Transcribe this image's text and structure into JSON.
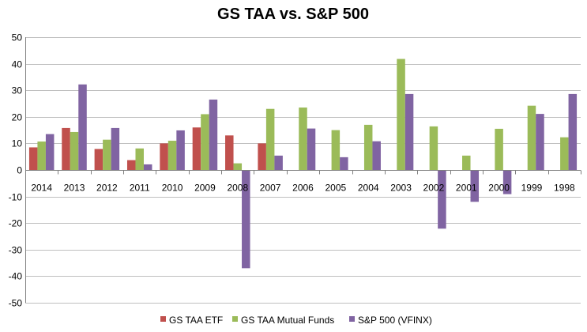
{
  "chart_data": {
    "type": "bar",
    "title": "GS TAA vs. S&P 500",
    "xlabel": "",
    "ylabel": "",
    "ylim": [
      -50,
      50
    ],
    "yticks": [
      -50,
      -40,
      -30,
      -20,
      -10,
      0,
      10,
      20,
      30,
      40,
      50
    ],
    "grid": true,
    "legend_position": "bottom",
    "categories": [
      "2014",
      "2013",
      "2012",
      "2011",
      "2010",
      "2009",
      "2008",
      "2007",
      "2006",
      "2005",
      "2004",
      "2003",
      "2002",
      "2001",
      "2000",
      "1999",
      "1998"
    ],
    "series": [
      {
        "name": "GS TAA ETF",
        "color": "#c0504d",
        "values": [
          8.5,
          15.8,
          7.9,
          3.7,
          10,
          16,
          13,
          10,
          null,
          null,
          null,
          null,
          null,
          null,
          null,
          null,
          null
        ]
      },
      {
        "name": "GS TAA Mutual Funds",
        "color": "#9bbb59",
        "values": [
          10.7,
          14.3,
          11.4,
          8.1,
          11,
          21,
          2.5,
          23,
          23.5,
          15,
          17,
          41.8,
          16.4,
          5.4,
          15.5,
          24.2,
          12.3
        ]
      },
      {
        "name": "S&P 500 (VFINX)",
        "color": "#8064a2",
        "values": [
          13.5,
          32.2,
          15.8,
          2.1,
          14.9,
          26.5,
          -37,
          5.4,
          15.6,
          4.8,
          10.8,
          28.6,
          -22.1,
          -12,
          -9.1,
          21.1,
          28.6
        ]
      }
    ]
  }
}
